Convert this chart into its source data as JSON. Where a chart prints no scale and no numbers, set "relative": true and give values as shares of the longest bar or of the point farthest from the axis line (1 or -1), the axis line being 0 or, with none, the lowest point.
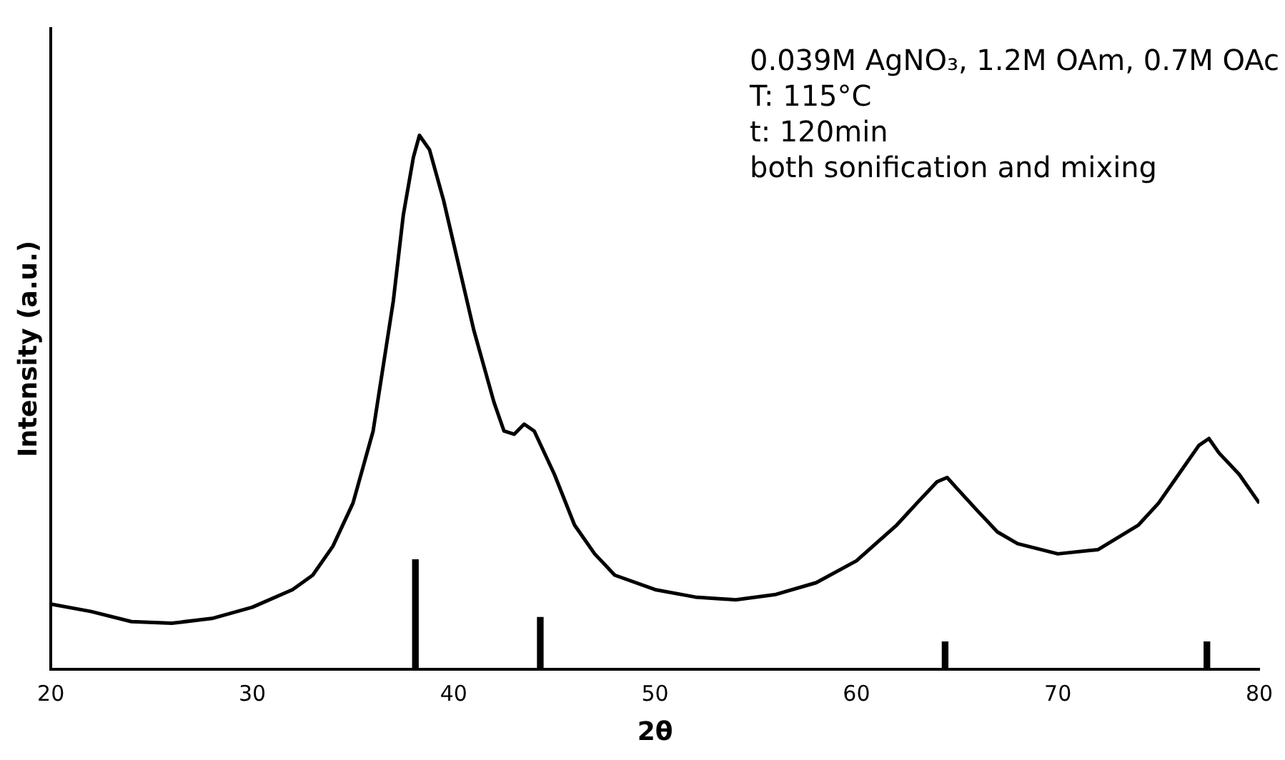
{
  "chart_data": {
    "type": "line",
    "xlabel": "2θ",
    "ylabel": "Intensity (a.u.)",
    "relative": true,
    "xlim": [
      20,
      80
    ],
    "xticks": [
      20,
      30,
      40,
      50,
      60,
      70,
      80
    ],
    "grid": false,
    "legend": false,
    "marker": "none",
    "line_style": "solid",
    "annotations": [
      "0.039M AgNO₃, 1.2M OAm, 0.7M OAc",
      "T: 115°C",
      "t: 120min",
      "both sonification and mixing"
    ],
    "series": [
      {
        "color": "#000000",
        "x": [
          20,
          22,
          24,
          26,
          28,
          30,
          32,
          33,
          34,
          35,
          36,
          37,
          37.5,
          38,
          38.3,
          38.8,
          39.5,
          40,
          41,
          42,
          42.5,
          43,
          43.5,
          44,
          45,
          46,
          47,
          48,
          50,
          52,
          54,
          56,
          58,
          60,
          62,
          63,
          64,
          64.5,
          65,
          66,
          67,
          68,
          70,
          72,
          74,
          75,
          76,
          77,
          77.5,
          78,
          79,
          80
        ],
        "values": [
          0.122,
          0.108,
          0.089,
          0.086,
          0.095,
          0.116,
          0.149,
          0.176,
          0.23,
          0.311,
          0.446,
          0.689,
          0.851,
          0.959,
          1,
          0.973,
          0.878,
          0.797,
          0.635,
          0.5,
          0.446,
          0.44,
          0.459,
          0.446,
          0.365,
          0.27,
          0.216,
          0.176,
          0.149,
          0.135,
          0.13,
          0.14,
          0.162,
          0.203,
          0.27,
          0.311,
          0.351,
          0.359,
          0.338,
          0.297,
          0.257,
          0.235,
          0.216,
          0.224,
          0.27,
          0.311,
          0.365,
          0.419,
          0.432,
          0.405,
          0.365,
          0.311
        ]
      },
      {
        "type": "bar",
        "color": "#000000",
        "x": [
          38.1,
          44.3,
          64.4,
          77.4
        ],
        "values": [
          0.205,
          0.097,
          0.051,
          0.051
        ]
      }
    ]
  }
}
